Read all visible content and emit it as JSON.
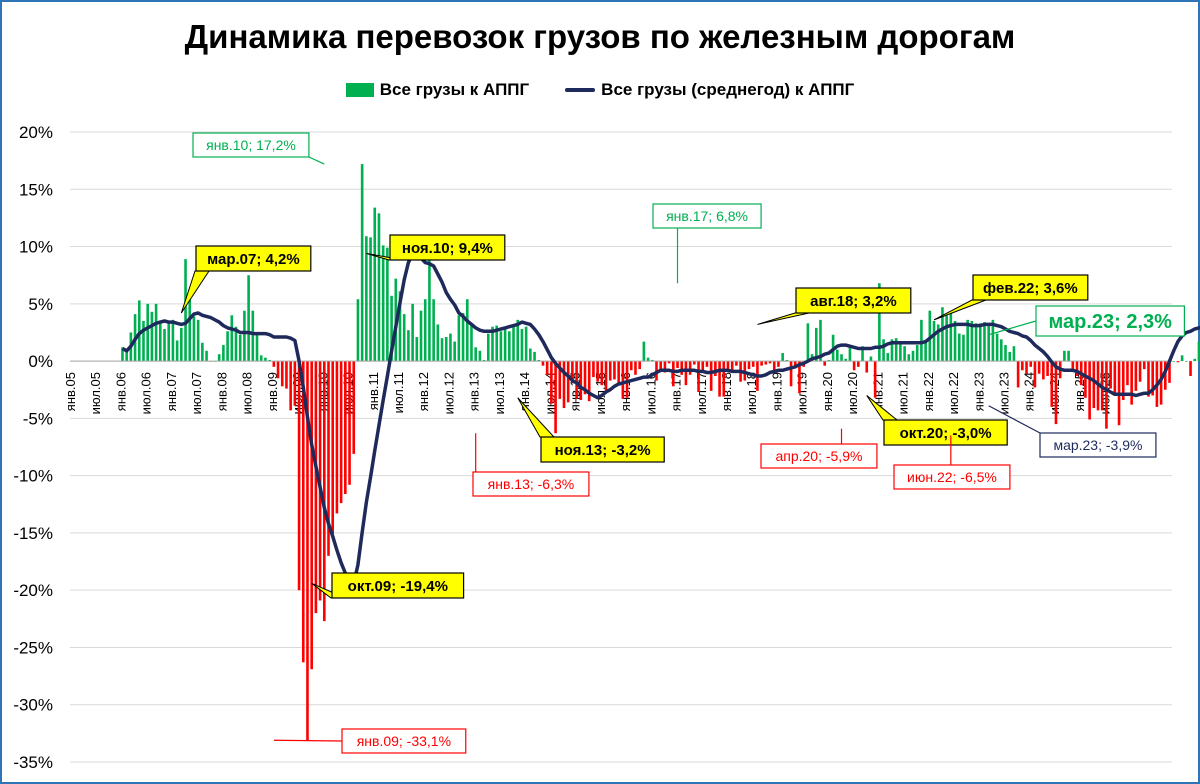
{
  "chart_data": {
    "type": "bar",
    "title": "Динамика перевозок грузов по железным дорогам",
    "legend": {
      "placement": "top",
      "bars_label": "Все грузы к АППГ",
      "line_label": "Все грузы (среднегод) к АППГ"
    },
    "colors": {
      "positive": "#00b050",
      "negative": "#ff0000",
      "line": "#1f2a5c",
      "callout_yellow": "#ffff00",
      "callout_green": "#00b050",
      "callout_red": "#ff0000",
      "callout_blue": "#1f2a5c"
    },
    "y_axis": {
      "min": -35,
      "max": 20,
      "step": 5,
      "unit": "%",
      "tick_labels": [
        "20%",
        "15%",
        "10%",
        "5%",
        "0%",
        "-5%",
        "-10%",
        "-15%",
        "-20%",
        "-25%",
        "-30%",
        "-35%"
      ]
    },
    "x_axis": {
      "start": "янв.05",
      "end": "июл.25",
      "tick_labels": [
        "янв.05",
        "июл.05",
        "янв.06",
        "июл.06",
        "янв.07",
        "июл.07",
        "янв.08",
        "июл.08",
        "янв.09",
        "июл.09",
        "янв.10",
        "июл.10",
        "янв.11",
        "июл.11",
        "янв.12",
        "июл.12",
        "янв.13",
        "июл.13",
        "янв.14",
        "июл.14",
        "янв.15",
        "июл.15",
        "янв.16",
        "июл.16",
        "янв.17",
        "июл.17",
        "янв.18",
        "июл.18",
        "янв.19",
        "июл.19",
        "янв.20",
        "июл.20",
        "янв.21",
        "июл.21",
        "янв.22",
        "июл.22",
        "янв.23",
        "июл.23",
        "янв.24",
        "июл.24",
        "янв.25",
        "июл.25"
      ]
    },
    "bars_start": "янв.06",
    "bars": [
      1.2,
      0.8,
      2.5,
      4.1,
      5.3,
      3.5,
      5.0,
      4.3,
      5.0,
      3.4,
      2.8,
      3.5,
      3.6,
      1.8,
      2.9,
      8.9,
      6.3,
      3.9,
      3.6,
      1.6,
      0.9,
      0.0,
      0.0,
      0.6,
      1.4,
      2.6,
      4.0,
      3.0,
      2.3,
      4.4,
      7.5,
      4.4,
      2.5,
      0.5,
      0.3,
      0.1,
      -0.5,
      -1.5,
      -2.2,
      -2.4,
      -4.3,
      -3.9,
      -20.0,
      -26.3,
      -33.1,
      -26.9,
      -22.0,
      -20.9,
      -22.7,
      -17.0,
      -15.1,
      -13.3,
      -12.4,
      -11.6,
      -10.8,
      -8.1,
      5.4,
      17.2,
      10.9,
      10.8,
      13.4,
      12.9,
      10.1,
      9.9,
      5.7,
      7.2,
      6.1,
      4.1,
      2.7,
      5.0,
      2.1,
      4.4,
      5.4,
      8.9,
      5.4,
      3.2,
      2.0,
      2.1,
      2.4,
      1.7,
      4.0,
      4.2,
      5.4,
      3.1,
      1.2,
      0.9,
      0.1,
      2.4,
      3.0,
      3.1,
      2.6,
      2.9,
      2.6,
      3.1,
      3.6,
      2.8,
      3.0,
      1.1,
      0.8,
      0.1,
      -0.4,
      -1.2,
      -3.7,
      -6.3,
      -3.3,
      -4.1,
      -3.6,
      -1.9,
      -3.3,
      -3.4,
      -2.9,
      -3.5,
      -1.4,
      -1.8,
      -2.1,
      -2.7,
      -1.7,
      -1.6,
      -2.1,
      -3.3,
      -3.2,
      -0.8,
      -1.2,
      -0.7,
      1.7,
      0.3,
      0.1,
      -1.7,
      -0.9,
      -1.0,
      -0.2,
      -2.2,
      -0.6,
      -1.2,
      -2.1,
      -1.2,
      -0.3,
      -2.7,
      -1.0,
      -0.5,
      -2.6,
      -1.3,
      -3.1,
      -3.1,
      -0.9,
      -0.8,
      -0.4,
      -1.8,
      -1.7,
      -0.7,
      -0.5,
      -2.6,
      -0.4,
      -0.3,
      -0.2,
      -1.0,
      -0.5,
      0.7,
      0.1,
      -2.2,
      -0.4,
      -2.8,
      -0.5,
      3.3,
      0.6,
      2.9,
      3.6,
      -0.4,
      0.1,
      2.3,
      1.0,
      0.6,
      0.2,
      1.3,
      -0.8,
      -0.5,
      1.3,
      -1.0,
      0.4,
      -3.2,
      6.8,
      1.9,
      0.7,
      1.9,
      2.0,
      1.6,
      1.3,
      0.6,
      0.9,
      1.4,
      3.6,
      1.7,
      4.4,
      3.5,
      3.2,
      4.7,
      4.0,
      4.3,
      3.5,
      2.4,
      2.3,
      3.6,
      3.5,
      3.3,
      3.3,
      3.4,
      3.2,
      3.6,
      2.4,
      1.9,
      1.4,
      0.8,
      1.3,
      -2.3,
      -0.8,
      -1.1,
      -0.5,
      -2.3,
      -1.1,
      -1.6,
      -1.3,
      -4.0,
      -5.5,
      -1.5,
      0.9,
      0.9,
      -0.8,
      -1.3,
      -2.1,
      -3.2,
      -5.1,
      -4.1,
      -4.3,
      -4.3,
      -5.9,
      -2.4,
      -2.9,
      -5.6,
      -3.4,
      -2.1,
      -3.8,
      -2.6,
      -1.8,
      -0.7,
      -3.1,
      -3.0,
      -4.0,
      -3.8,
      -2.5,
      -1.9,
      0.0,
      -0.1,
      0.5,
      0.0,
      -1.3,
      0.2,
      1.7,
      2.1,
      2.2,
      7.1,
      10.4,
      10.3,
      5.8,
      3.1,
      0.9,
      1.2,
      0.7,
      2.6,
      3.7,
      2.8,
      3.5,
      1.7,
      1.6,
      -0.4,
      -1.0,
      -1.2,
      -1.8,
      -3.0,
      -4.5,
      -5.5,
      -6.5,
      -4.5,
      -4.0,
      -4.5,
      -4.8,
      -4.7,
      -4.4,
      -3.4,
      -5.0,
      -4.8,
      -4.3,
      -5.5,
      -2.8,
      0.1,
      0.3,
      2.3
    ],
    "line_start": "янв.06",
    "line": [
      1.1,
      0.9,
      1.3,
      1.9,
      2.4,
      2.7,
      2.9,
      3.1,
      3.3,
      3.4,
      3.5,
      3.4,
      3.4,
      3.3,
      3.2,
      3.3,
      3.7,
      4.1,
      4.2,
      4.0,
      3.9,
      3.8,
      3.6,
      3.4,
      3.1,
      2.9,
      2.8,
      2.7,
      2.5,
      2.5,
      2.5,
      2.4,
      2.4,
      2.4,
      2.4,
      2.3,
      2.1,
      2.1,
      2.1,
      2.1,
      2.0,
      1.8,
      0.0,
      -2.3,
      -4.9,
      -7.3,
      -9.2,
      -11.0,
      -12.8,
      -14.2,
      -15.3,
      -16.5,
      -17.6,
      -18.5,
      -19.4,
      -19.4,
      -17.8,
      -15.0,
      -12.3,
      -10.1,
      -7.8,
      -5.6,
      -3.4,
      -1.3,
      0.9,
      3.0,
      5.1,
      7.1,
      8.6,
      9.4,
      9.3,
      9.0,
      8.6,
      8.5,
      8.3,
      7.6,
      6.9,
      6.0,
      5.4,
      4.9,
      4.2,
      3.9,
      3.5,
      3.2,
      2.9,
      2.7,
      2.6,
      2.6,
      2.6,
      2.7,
      2.8,
      2.9,
      3.0,
      3.1,
      3.2,
      3.4,
      3.3,
      3.2,
      2.8,
      2.3,
      1.7,
      1.0,
      0.3,
      -0.2,
      -0.6,
      -1.0,
      -1.3,
      -1.7,
      -1.9,
      -2.3,
      -2.5,
      -2.8,
      -3.0,
      -3.2,
      -3.0,
      -2.7,
      -2.5,
      -2.2,
      -2.0,
      -1.9,
      -1.8,
      -1.7,
      -1.6,
      -1.5,
      -1.4,
      -1.4,
      -1.2,
      -1.0,
      -0.8,
      -0.8,
      -0.8,
      -0.9,
      -0.9,
      -0.8,
      -0.8,
      -0.8,
      -0.8,
      -0.9,
      -0.9,
      -1.0,
      -1.0,
      -0.9,
      -0.8,
      -0.8,
      -0.8,
      -0.9,
      -0.9,
      -0.9,
      -1.0,
      -1.1,
      -1.2,
      -1.3,
      -1.3,
      -1.2,
      -1.0,
      -0.9,
      -0.8,
      -0.8,
      -0.7,
      -0.6,
      -0.5,
      -0.3,
      -0.2,
      0.0,
      0.2,
      0.3,
      0.4,
      0.6,
      0.7,
      1.0,
      1.3,
      1.4,
      1.4,
      1.3,
      1.2,
      1.1,
      1.1,
      1.1,
      1.1,
      1.2,
      1.2,
      1.3,
      1.5,
      1.6,
      1.6,
      1.6,
      1.6,
      1.6,
      1.6,
      1.6,
      1.6,
      1.7,
      2.0,
      2.3,
      2.6,
      2.8,
      3.0,
      3.1,
      3.2,
      3.2,
      3.2,
      3.2,
      3.1,
      3.1,
      3.1,
      3.2,
      3.2,
      3.2,
      3.1,
      3.0,
      2.8,
      2.6,
      2.5,
      2.4,
      2.2,
      2.1,
      1.8,
      1.4,
      1.1,
      0.8,
      0.4,
      -0.1,
      -0.5,
      -0.7,
      -0.8,
      -0.8,
      -0.8,
      -0.9,
      -1.1,
      -1.3,
      -1.5,
      -1.7,
      -2.0,
      -2.3,
      -2.5,
      -2.7,
      -2.9,
      -2.9,
      -2.9,
      -2.9,
      -2.9,
      -3.0,
      -2.9,
      -2.8,
      -2.8,
      -2.5,
      -2.1,
      -1.6,
      -0.9,
      0.0,
      0.9,
      1.7,
      2.2,
      2.5,
      2.6,
      2.8,
      2.9,
      3.0,
      3.1,
      3.2,
      3.3,
      3.4,
      3.5,
      3.6,
      3.1,
      2.4,
      1.6,
      0.7,
      -0.2,
      -0.9,
      -1.4,
      -1.8,
      -2.2,
      -2.5,
      -2.8,
      -3.1,
      -3.4,
      -3.7,
      -3.9,
      -4.0,
      -4.1,
      -3.8,
      -3.9
    ],
    "callouts": [
      {
        "label": "янв.10; 17,2%",
        "style": "green",
        "month": "янв.10",
        "value": 17.2
      },
      {
        "label": "мар.07; 4,2%",
        "style": "yellow",
        "month": "мар.07",
        "value": 4.2
      },
      {
        "label": "ноя.10; 9,4%",
        "style": "yellow",
        "month": "ноя.10",
        "value": 9.4
      },
      {
        "label": "окт.09; -19,4%",
        "style": "yellow",
        "month": "окт.09",
        "value": -19.4
      },
      {
        "label": "янв.09; -33,1%",
        "style": "red",
        "month": "янв.09",
        "value": -33.1
      },
      {
        "label": "янв.13; -6,3%",
        "style": "red",
        "month": "янв.13",
        "value": -6.3
      },
      {
        "label": "ноя.13; -3,2%",
        "style": "yellow",
        "month": "ноя.13",
        "value": -3.2
      },
      {
        "label": "янв.17; 6,8%",
        "style": "green",
        "month": "янв.17",
        "value": 6.8
      },
      {
        "label": "авг.18; 3,2%",
        "style": "yellow",
        "month": "авг.18",
        "value": 3.2
      },
      {
        "label": "апр.20; -5,9%",
        "style": "red",
        "month": "апр.20",
        "value": -5.9
      },
      {
        "label": "окт.20; -3,0%",
        "style": "yellow",
        "month": "окт.20",
        "value": -3.0
      },
      {
        "label": "фев.22; 3,6%",
        "style": "yellow",
        "month": "фев.22",
        "value": 3.6
      },
      {
        "label": "июн.22; -6,5%",
        "style": "red",
        "month": "июн.22",
        "value": -6.5
      },
      {
        "label": "мар.23; -3,9%",
        "style": "blue",
        "month": "мар.23",
        "value": -3.9
      },
      {
        "label": "мар.23; 2,3%",
        "style": "green-large",
        "month": "мар.23",
        "value": 2.3
      }
    ]
  }
}
